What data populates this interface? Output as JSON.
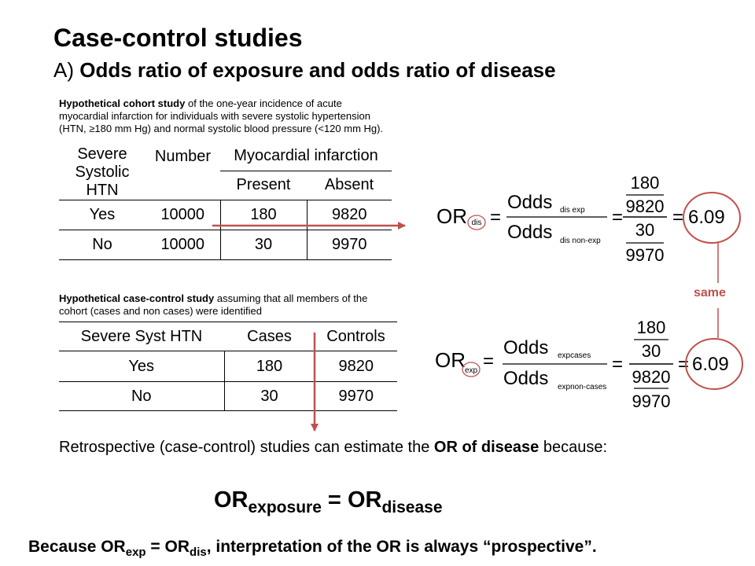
{
  "title": "Case-control studies",
  "subtitle": {
    "prefix": "A)",
    "text": "Odds ratio of exposure and odds ratio of disease"
  },
  "cohort": {
    "caption_bold": "Hypothetical cohort study",
    "caption_rest_1": "of the one-year incidence of acute",
    "caption_line_2": "myocardial infarction for individuals with severe systolic hypertension",
    "caption_line_3": "(HTN, ≥180 mm Hg) and normal systolic blood pressure (<120 mm Hg).",
    "headers": {
      "col1_line1": "Severe",
      "col1_line2": "Systolic",
      "col1_line3": "HTN",
      "col2": "Number",
      "group": "Myocardial infarction",
      "present": "Present",
      "absent": "Absent"
    },
    "rows": [
      {
        "label": "Yes",
        "number": "10000",
        "present": "180",
        "absent": "9820"
      },
      {
        "label": "No",
        "number": "10000",
        "present": "30",
        "absent": "9970"
      }
    ]
  },
  "case_control": {
    "caption_bold": "Hypothetical case-control study",
    "caption_rest_1": "assuming that all members of the",
    "caption_line_2": "cohort (cases and non cases) were identified",
    "headers": {
      "col1": "Severe Syst HTN",
      "cases": "Cases",
      "controls": "Controls"
    },
    "rows": [
      {
        "label": "Yes",
        "cases": "180",
        "controls": "9820"
      },
      {
        "label": "No",
        "cases": "30",
        "controls": "9970"
      }
    ]
  },
  "formula_dis": {
    "or": "OR",
    "or_sub": "dis",
    "odds": "Odds",
    "num_sub": "dis exp",
    "den_sub": "dis non-exp",
    "a": "180",
    "b": "9820",
    "c": "30",
    "d": "9970",
    "result": "6.09"
  },
  "formula_exp": {
    "or": "OR",
    "or_sub": "exp",
    "odds": "Odds",
    "num_sub": "expcases",
    "den_sub": "expnon-cases",
    "a": "180",
    "b": "30",
    "c": "9820",
    "d": "9970",
    "result": "6.09"
  },
  "eq_sign": "=",
  "same_label": "same",
  "paragraph": {
    "part1": "Retrospective (case-control) studies can estimate the",
    "bold": "OR of disease",
    "part2": "because:"
  },
  "big_equation": {
    "left": "OR",
    "left_sub": "exposure",
    "eq": " = ",
    "right": "OR",
    "right_sub": "disease"
  },
  "bottom_line": {
    "prefix": "Because OR",
    "sub1": "exp",
    "mid": " = OR",
    "sub2": "dis",
    "suffix": ", interpretation of the OR is always “prospective”."
  },
  "colors": {
    "accent": "#c0504d",
    "text": "#000000"
  }
}
